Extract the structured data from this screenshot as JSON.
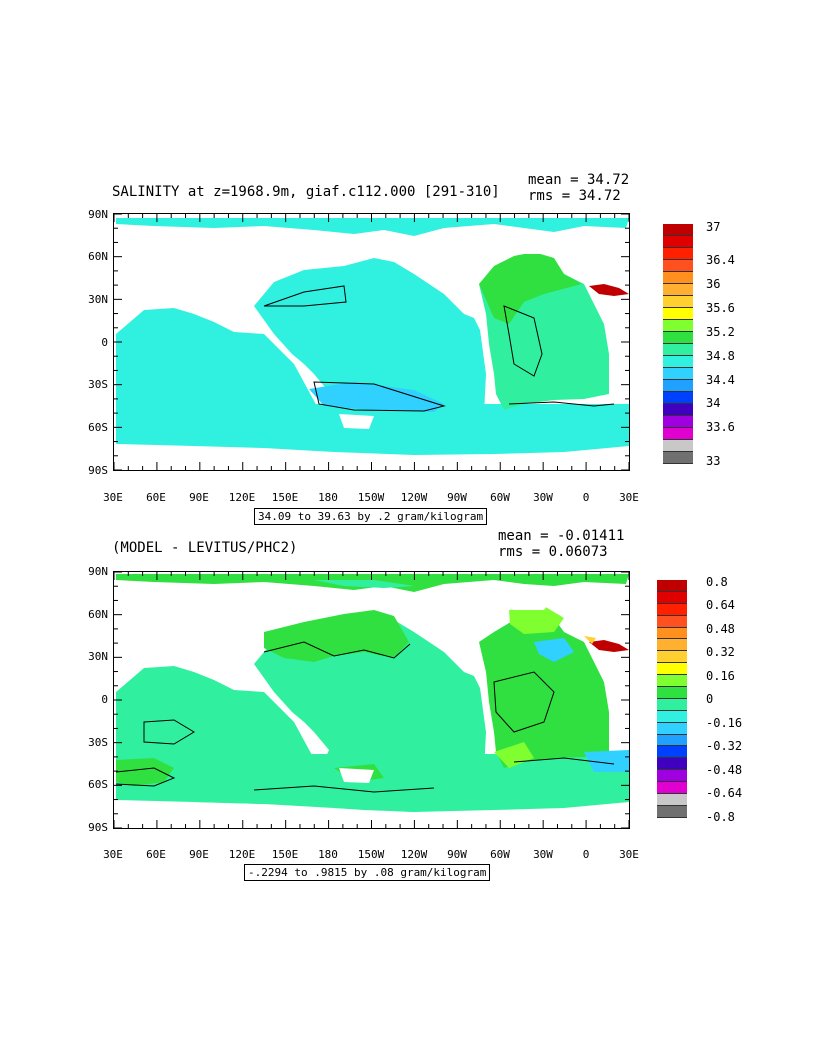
{
  "panels": [
    {
      "title": "SALINITY at z=1968.9m, giaf.c112.000 [291-310]",
      "mean": "mean = 34.72",
      "rms": "rms = 34.72",
      "range_text": "34.09 to 39.63 by .2 gram/kilogram",
      "lat_labels": [
        "90N",
        "60N",
        "30N",
        "0",
        "30S",
        "60S",
        "90S"
      ],
      "lon_labels": [
        "30E",
        "60E",
        "90E",
        "120E",
        "150E",
        "180",
        "150W",
        "120W",
        "90W",
        "60W",
        "30W",
        "0",
        "30E"
      ],
      "colorbar": {
        "colors": [
          "#c00000",
          "#e00000",
          "#ff2000",
          "#ff5020",
          "#ff9020",
          "#ffb030",
          "#ffd030",
          "#ffff00",
          "#80ff30",
          "#30e040",
          "#30f0a0",
          "#30f0e0",
          "#30d0ff",
          "#20a0ff",
          "#0040ff",
          "#4000c0",
          "#a000e0",
          "#e000d0",
          "#c8c8c8",
          "#707070"
        ],
        "labels": [
          "37",
          "36.4",
          "36",
          "35.6",
          "35.2",
          "34.8",
          "34.4",
          "34",
          "33.6",
          "33"
        ]
      }
    },
    {
      "title": "(MODEL - LEVITUS/PHC2)",
      "mean": "mean = -0.01411",
      "rms": "rms = 0.06073",
      "range_text": "-.2294 to .9815 by .08 gram/kilogram",
      "lat_labels": [
        "90N",
        "60N",
        "30N",
        "0",
        "30S",
        "60S",
        "90S"
      ],
      "lon_labels": [
        "30E",
        "60E",
        "90E",
        "120E",
        "150E",
        "180",
        "150W",
        "120W",
        "90W",
        "60W",
        "30W",
        "0",
        "30E"
      ],
      "colorbar": {
        "colors": [
          "#c00000",
          "#e00000",
          "#ff2000",
          "#ff5020",
          "#ff9020",
          "#ffb030",
          "#ffd030",
          "#ffff00",
          "#80ff30",
          "#30e040",
          "#30f0a0",
          "#30f0e0",
          "#30d0ff",
          "#20a0ff",
          "#0040ff",
          "#4000c0",
          "#a000e0",
          "#e000d0",
          "#c8c8c8",
          "#707070"
        ],
        "labels": [
          "0.8",
          "0.64",
          "0.48",
          "0.32",
          "0.16",
          "0",
          "-0.16",
          "-0.32",
          "-0.48",
          "-0.64",
          "-0.8"
        ]
      }
    }
  ]
}
